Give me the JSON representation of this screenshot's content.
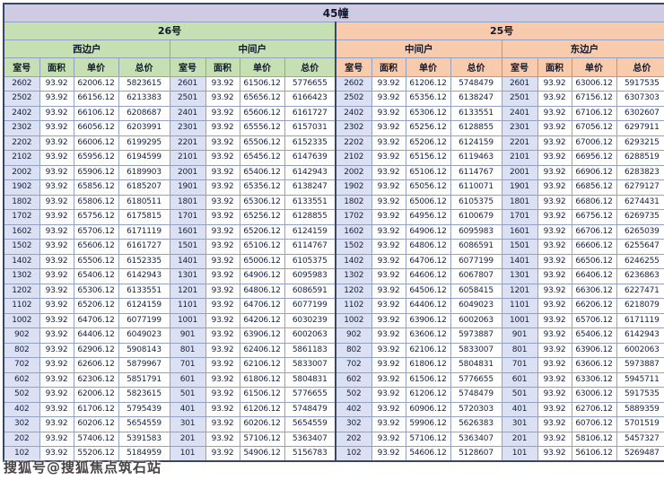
{
  "title": "45幢",
  "buildings": [
    {
      "name": "26号",
      "units": [
        "西边户",
        "中间户"
      ]
    },
    {
      "name": "25号",
      "units": [
        "中间户",
        "东边户"
      ]
    }
  ],
  "columns": [
    "室号",
    "面积",
    "单价",
    "总价"
  ],
  "area": "93.92",
  "watermark": "搜狐号@搜狐焦点筑石站",
  "colors": {
    "title_bg": "#cfcbe3",
    "building26_bg": "#c6e0b4",
    "building25_bg": "#f8cbad",
    "room_col_bg": "#dbe1f3",
    "grid": "#93a0bf",
    "frame": "#3a4668"
  },
  "rows": [
    [
      "2602",
      "93.92",
      "62006.12",
      "5823615",
      "2601",
      "93.92",
      "61506.12",
      "5776655",
      "2602",
      "93.92",
      "61206.12",
      "5748479",
      "2601",
      "93.92",
      "63006.12",
      "5917535"
    ],
    [
      "2502",
      "93.92",
      "66156.12",
      "6213383",
      "2501",
      "93.92",
      "65656.12",
      "6166423",
      "2502",
      "93.92",
      "65356.12",
      "6138247",
      "2501",
      "93.92",
      "67156.12",
      "6307303"
    ],
    [
      "2402",
      "93.92",
      "66106.12",
      "6208687",
      "2401",
      "93.92",
      "65606.12",
      "6161727",
      "2402",
      "93.92",
      "65306.12",
      "6133551",
      "2401",
      "93.92",
      "67106.12",
      "6302607"
    ],
    [
      "2302",
      "93.92",
      "66056.12",
      "6203991",
      "2301",
      "93.92",
      "65556.12",
      "6157031",
      "2302",
      "93.92",
      "65256.12",
      "6128855",
      "2301",
      "93.92",
      "67056.12",
      "6297911"
    ],
    [
      "2202",
      "93.92",
      "66006.12",
      "6199295",
      "2201",
      "93.92",
      "65506.12",
      "6152335",
      "2202",
      "93.92",
      "65206.12",
      "6124159",
      "2201",
      "93.92",
      "67006.12",
      "6293215"
    ],
    [
      "2102",
      "93.92",
      "65956.12",
      "6194599",
      "2101",
      "93.92",
      "65456.12",
      "6147639",
      "2102",
      "93.92",
      "65156.12",
      "6119463",
      "2101",
      "93.92",
      "66956.12",
      "6288519"
    ],
    [
      "2002",
      "93.92",
      "65906.12",
      "6189903",
      "2001",
      "93.92",
      "65406.12",
      "6142943",
      "2002",
      "93.92",
      "65106.12",
      "6114767",
      "2001",
      "93.92",
      "66906.12",
      "6283823"
    ],
    [
      "1902",
      "93.92",
      "65856.12",
      "6185207",
      "1901",
      "93.92",
      "65356.12",
      "6138247",
      "1902",
      "93.92",
      "65056.12",
      "6110071",
      "1901",
      "93.92",
      "66856.12",
      "6279127"
    ],
    [
      "1802",
      "93.92",
      "65806.12",
      "6180511",
      "1801",
      "93.92",
      "65306.12",
      "6133551",
      "1802",
      "93.92",
      "65006.12",
      "6105375",
      "1801",
      "93.92",
      "66806.12",
      "6274431"
    ],
    [
      "1702",
      "93.92",
      "65756.12",
      "6175815",
      "1701",
      "93.92",
      "65256.12",
      "6128855",
      "1702",
      "93.92",
      "64956.12",
      "6100679",
      "1701",
      "93.92",
      "66756.12",
      "6269735"
    ],
    [
      "1602",
      "93.92",
      "65706.12",
      "6171119",
      "1601",
      "93.92",
      "65206.12",
      "6124159",
      "1602",
      "93.92",
      "64906.12",
      "6095983",
      "1601",
      "93.92",
      "66706.12",
      "6265039"
    ],
    [
      "1502",
      "93.92",
      "65606.12",
      "6161727",
      "1501",
      "93.92",
      "65106.12",
      "6114767",
      "1502",
      "93.92",
      "64806.12",
      "6086591",
      "1501",
      "93.92",
      "66606.12",
      "6255647"
    ],
    [
      "1402",
      "93.92",
      "65506.12",
      "6152335",
      "1401",
      "93.92",
      "65006.12",
      "6105375",
      "1402",
      "93.92",
      "64706.12",
      "6077199",
      "1401",
      "93.92",
      "66506.12",
      "6246255"
    ],
    [
      "1302",
      "93.92",
      "65406.12",
      "6142943",
      "1301",
      "93.92",
      "64906.12",
      "6095983",
      "1302",
      "93.92",
      "64606.12",
      "6067807",
      "1301",
      "93.92",
      "66406.12",
      "6236863"
    ],
    [
      "1202",
      "93.92",
      "65306.12",
      "6133551",
      "1201",
      "93.92",
      "64806.12",
      "6086591",
      "1202",
      "93.92",
      "64506.12",
      "6058415",
      "1201",
      "93.92",
      "66306.12",
      "6227471"
    ],
    [
      "1102",
      "93.92",
      "65206.12",
      "6124159",
      "1101",
      "93.92",
      "64706.12",
      "6077199",
      "1102",
      "93.92",
      "64406.12",
      "6049023",
      "1101",
      "93.92",
      "66206.12",
      "6218079"
    ],
    [
      "1002",
      "93.92",
      "64706.12",
      "6077199",
      "1001",
      "93.92",
      "64206.12",
      "6030239",
      "1002",
      "93.92",
      "63906.12",
      "6002063",
      "1001",
      "93.92",
      "65706.12",
      "6171119"
    ],
    [
      "902",
      "93.92",
      "64406.12",
      "6049023",
      "901",
      "93.92",
      "63906.12",
      "6002063",
      "902",
      "93.92",
      "63606.12",
      "5973887",
      "901",
      "93.92",
      "65406.12",
      "6142943"
    ],
    [
      "802",
      "93.92",
      "62906.12",
      "5908143",
      "801",
      "93.92",
      "62406.12",
      "5861183",
      "802",
      "93.92",
      "62106.12",
      "5833007",
      "801",
      "93.92",
      "63906.12",
      "6002063"
    ],
    [
      "702",
      "93.92",
      "62606.12",
      "5879967",
      "701",
      "93.92",
      "62106.12",
      "5833007",
      "702",
      "93.92",
      "61806.12",
      "5804831",
      "701",
      "93.92",
      "63606.12",
      "5973887"
    ],
    [
      "602",
      "93.92",
      "62306.12",
      "5851791",
      "601",
      "93.92",
      "61806.12",
      "5804831",
      "602",
      "93.92",
      "61506.12",
      "5776655",
      "601",
      "93.92",
      "63306.12",
      "5945711"
    ],
    [
      "502",
      "93.92",
      "62006.12",
      "5823615",
      "501",
      "93.92",
      "61506.12",
      "5776655",
      "502",
      "93.92",
      "61206.12",
      "5748479",
      "501",
      "93.92",
      "63006.12",
      "5917535"
    ],
    [
      "402",
      "93.92",
      "61706.12",
      "5795439",
      "401",
      "93.92",
      "61206.12",
      "5748479",
      "402",
      "93.92",
      "60906.12",
      "5720303",
      "401",
      "93.92",
      "62706.12",
      "5889359"
    ],
    [
      "302",
      "93.92",
      "60206.12",
      "5654559",
      "301",
      "93.92",
      "60206.12",
      "5654559",
      "302",
      "93.92",
      "59906.12",
      "5626383",
      "301",
      "93.92",
      "60706.12",
      "5701519"
    ],
    [
      "202",
      "93.92",
      "57406.12",
      "5391583",
      "201",
      "93.92",
      "57106.12",
      "5363407",
      "202",
      "93.92",
      "57106.12",
      "5363407",
      "201",
      "93.92",
      "58106.12",
      "5457327"
    ],
    [
      "102",
      "93.92",
      "55206.12",
      "5184959",
      "101",
      "93.92",
      "54906.12",
      "5156783",
      "102",
      "93.92",
      "54606.12",
      "5128607",
      "101",
      "93.92",
      "56106.12",
      "5269487"
    ]
  ]
}
